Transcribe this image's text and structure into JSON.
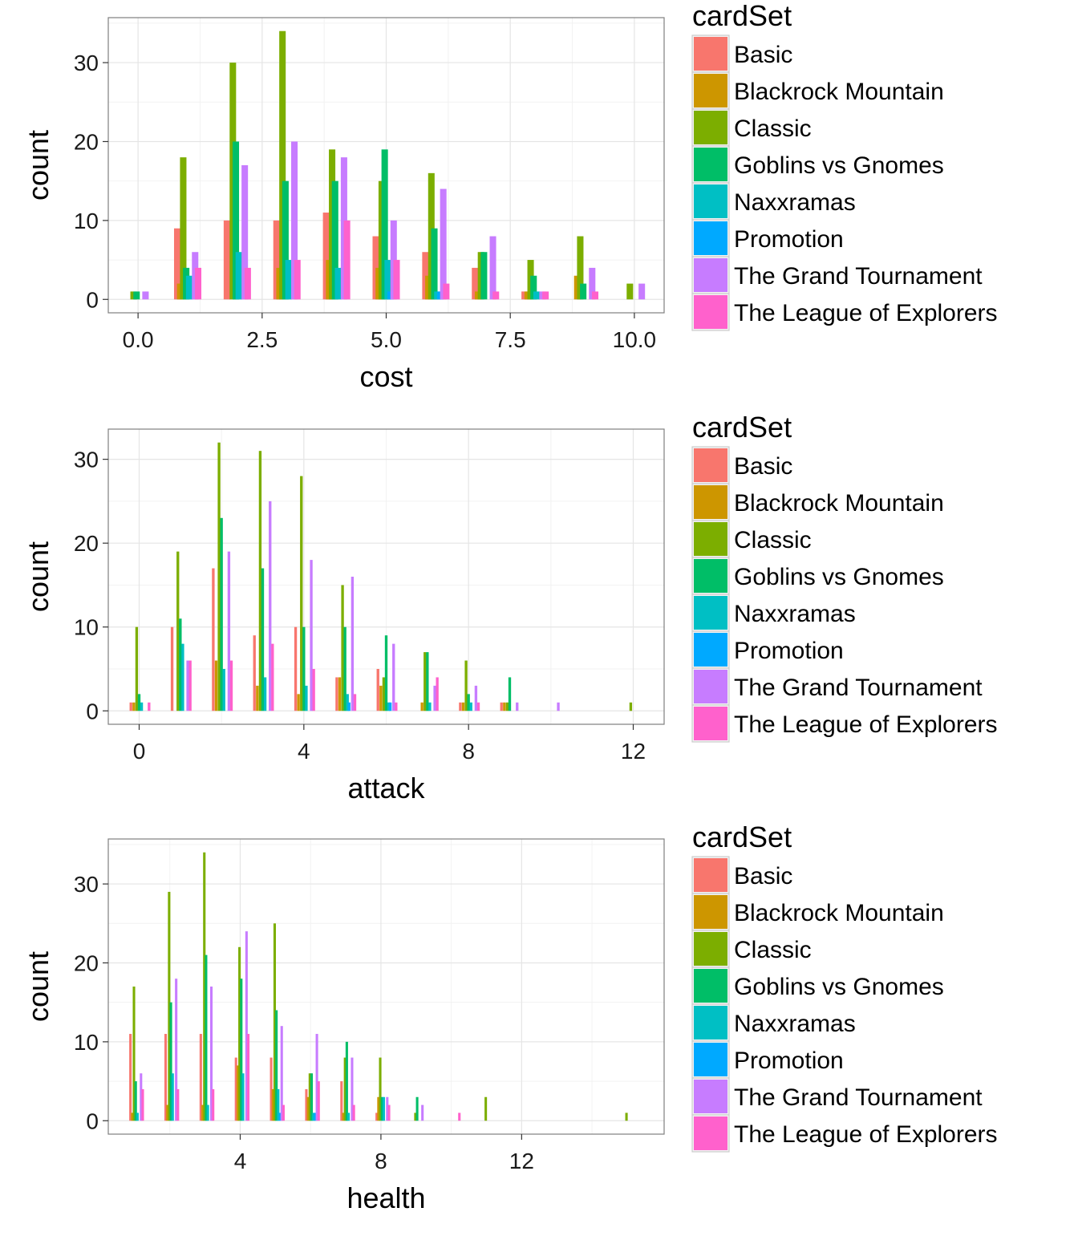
{
  "legend_title": "cardSet",
  "legend_entries": [
    {
      "name": "Basic",
      "color": "#F8766D"
    },
    {
      "name": "Blackrock Mountain",
      "color": "#CD9600"
    },
    {
      "name": "Classic",
      "color": "#7CAE00"
    },
    {
      "name": "Goblins vs Gnomes",
      "color": "#00BE67"
    },
    {
      "name": "Naxxramas",
      "color": "#00BFC4"
    },
    {
      "name": "Promotion",
      "color": "#00A9FF"
    },
    {
      "name": "The Grand Tournament",
      "color": "#C77CFF"
    },
    {
      "name": "The League of Explorers",
      "color": "#FF61CC"
    }
  ],
  "chart_data": [
    {
      "type": "bar",
      "xlabel": "cost",
      "ylabel": "count",
      "xlim": [
        -0.6,
        10.6
      ],
      "ylim": [
        -1.7,
        35.7
      ],
      "xticks": [
        "0.0",
        "2.5",
        "5.0",
        "7.5",
        "10.0"
      ],
      "xtick_values": [
        0,
        2.5,
        5,
        7.5,
        10
      ],
      "yticks": [
        0,
        10,
        20,
        30
      ],
      "grid": true,
      "legend_position": "right",
      "bin_width": 0.13,
      "series_offsets": [
        -0.21,
        -0.15,
        -0.09,
        -0.03,
        0.03,
        0.09,
        0.15,
        0.21
      ],
      "categories": [
        0,
        1,
        2,
        3,
        4,
        5,
        6,
        7,
        8,
        9,
        10
      ],
      "series": [
        {
          "name": "Basic",
          "values": [
            0,
            9,
            10,
            10,
            11,
            8,
            6,
            4,
            1,
            0,
            0
          ]
        },
        {
          "name": "Blackrock Mountain",
          "values": [
            0,
            2,
            0,
            4,
            5,
            4,
            3,
            1,
            1,
            3,
            0
          ]
        },
        {
          "name": "Classic",
          "values": [
            1,
            18,
            30,
            34,
            19,
            15,
            16,
            6,
            5,
            8,
            2
          ]
        },
        {
          "name": "Goblins vs Gnomes",
          "values": [
            1,
            4,
            20,
            15,
            15,
            19,
            9,
            6,
            3,
            2,
            0
          ]
        },
        {
          "name": "Naxxramas",
          "values": [
            0,
            3,
            6,
            5,
            4,
            5,
            1,
            0,
            1,
            0,
            0
          ]
        },
        {
          "name": "Promotion",
          "values": [
            0,
            0,
            0,
            0,
            0,
            1,
            1,
            0,
            0,
            0,
            0
          ]
        },
        {
          "name": "The Grand Tournament",
          "values": [
            1,
            6,
            17,
            20,
            18,
            10,
            14,
            8,
            1,
            4,
            2
          ]
        },
        {
          "name": "The League of Explorers",
          "values": [
            0,
            4,
            4,
            5,
            10,
            5,
            2,
            1,
            1,
            1,
            0
          ]
        }
      ]
    },
    {
      "type": "bar",
      "xlabel": "attack",
      "ylabel": "count",
      "xlim": [
        -0.75,
        12.75
      ],
      "ylim": [
        -1.6,
        33.6
      ],
      "xticks": [
        "0",
        "4",
        "8",
        "12"
      ],
      "xtick_values": [
        0,
        4,
        8,
        12
      ],
      "yticks": [
        0,
        10,
        20,
        30
      ],
      "grid": true,
      "legend_position": "right",
      "bin_width": 0.065,
      "series_offsets": [
        -0.2,
        -0.13,
        -0.06,
        0.0,
        0.06,
        0.1,
        0.18,
        0.24
      ],
      "categories": [
        0,
        1,
        2,
        3,
        4,
        5,
        6,
        7,
        8,
        9,
        10,
        11,
        12
      ],
      "series": [
        {
          "name": "Basic",
          "values": [
            1,
            10,
            17,
            9,
            10,
            4,
            5,
            0,
            1,
            1,
            0,
            0,
            0
          ]
        },
        {
          "name": "Blackrock Mountain",
          "values": [
            1,
            0,
            6,
            3,
            2,
            4,
            3,
            1,
            1,
            1,
            0,
            0,
            0
          ]
        },
        {
          "name": "Classic",
          "values": [
            10,
            19,
            32,
            31,
            28,
            15,
            4,
            7,
            6,
            1,
            0,
            0,
            1
          ]
        },
        {
          "name": "Goblins vs Gnomes",
          "values": [
            2,
            11,
            23,
            17,
            10,
            10,
            9,
            7,
            2,
            4,
            0,
            0,
            0
          ]
        },
        {
          "name": "Naxxramas",
          "values": [
            1,
            8,
            5,
            4,
            3,
            2,
            1,
            1,
            1,
            0,
            0,
            0,
            0
          ]
        },
        {
          "name": "Promotion",
          "values": [
            0,
            0,
            0,
            0,
            0,
            1,
            1,
            0,
            0,
            0,
            0,
            0,
            0
          ]
        },
        {
          "name": "The Grand Tournament",
          "values": [
            0,
            6,
            19,
            25,
            18,
            16,
            8,
            3,
            3,
            1,
            1,
            0,
            0
          ]
        },
        {
          "name": "The League of Explorers",
          "values": [
            1,
            6,
            6,
            8,
            5,
            2,
            1,
            4,
            1,
            0,
            0,
            0,
            0
          ]
        }
      ]
    },
    {
      "type": "bar",
      "xlabel": "health",
      "ylabel": "count",
      "xlim": [
        0.25,
        16.05
      ],
      "ylim": [
        -1.7,
        35.7
      ],
      "xticks": [
        "4",
        "8",
        "12"
      ],
      "xtick_values": [
        4,
        8,
        12
      ],
      "yticks": [
        0,
        10,
        20,
        30
      ],
      "grid": true,
      "legend_position": "right",
      "bin_width": 0.07,
      "series_offsets": [
        -0.12,
        -0.07,
        -0.02,
        0.03,
        0.08,
        0.13,
        0.18,
        0.23
      ],
      "categories": [
        1,
        2,
        3,
        4,
        5,
        6,
        7,
        8,
        9,
        10,
        11,
        12,
        13,
        14,
        15
      ],
      "series": [
        {
          "name": "Basic",
          "values": [
            11,
            11,
            11,
            8,
            8,
            4,
            5,
            1,
            0,
            0,
            0,
            0,
            0,
            0,
            0
          ]
        },
        {
          "name": "Blackrock Mountain",
          "values": [
            1,
            2,
            2,
            7,
            4,
            3,
            1,
            3,
            0,
            0,
            0,
            0,
            0,
            0,
            0
          ]
        },
        {
          "name": "Classic",
          "values": [
            17,
            29,
            34,
            22,
            25,
            6,
            8,
            8,
            1,
            0,
            3,
            0,
            0,
            0,
            1
          ]
        },
        {
          "name": "Goblins vs Gnomes",
          "values": [
            5,
            15,
            21,
            18,
            14,
            6,
            10,
            3,
            3,
            0,
            0,
            0,
            0,
            0,
            0
          ]
        },
        {
          "name": "Naxxramas",
          "values": [
            1,
            6,
            2,
            6,
            4,
            1,
            1,
            3,
            0,
            0,
            0,
            0,
            0,
            0,
            0
          ]
        },
        {
          "name": "Promotion",
          "values": [
            0,
            0,
            0,
            0,
            1,
            1,
            0,
            0,
            0,
            0,
            0,
            0,
            0,
            0,
            0
          ]
        },
        {
          "name": "The Grand Tournament",
          "values": [
            6,
            18,
            17,
            24,
            12,
            11,
            8,
            3,
            2,
            0,
            0,
            0,
            0,
            0,
            0
          ]
        },
        {
          "name": "The League of Explorers",
          "values": [
            4,
            4,
            4,
            11,
            2,
            5,
            2,
            2,
            0,
            1,
            0,
            0,
            0,
            0,
            0
          ]
        }
      ]
    }
  ]
}
